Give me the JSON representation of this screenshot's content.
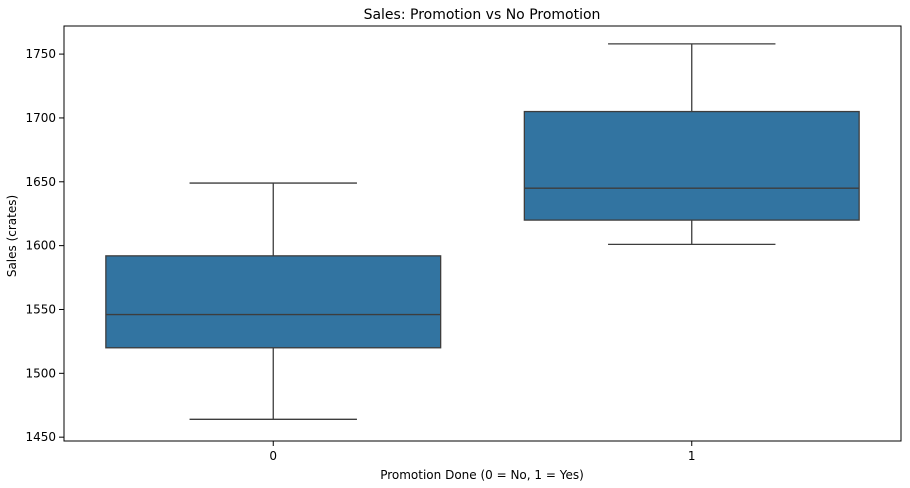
{
  "chart_data": {
    "type": "box",
    "title": "Sales: Promotion vs No Promotion",
    "xlabel": "Promotion Done (0 = No, 1 = Yes)",
    "ylabel": "Sales (crates)",
    "ylim": [
      1447,
      1772
    ],
    "yticks": [
      1450,
      1500,
      1550,
      1600,
      1650,
      1700,
      1750
    ],
    "categories": [
      "0",
      "1"
    ],
    "boxes": [
      {
        "category": "0",
        "whisker_low": 1464,
        "q1": 1520,
        "median": 1546,
        "q3": 1592,
        "whisker_high": 1649
      },
      {
        "category": "1",
        "whisker_low": 1601,
        "q1": 1620,
        "median": 1645,
        "q3": 1705,
        "whisker_high": 1758
      }
    ],
    "box_color": "#3274a1",
    "line_color": "#3d3d3d",
    "grid": false
  }
}
